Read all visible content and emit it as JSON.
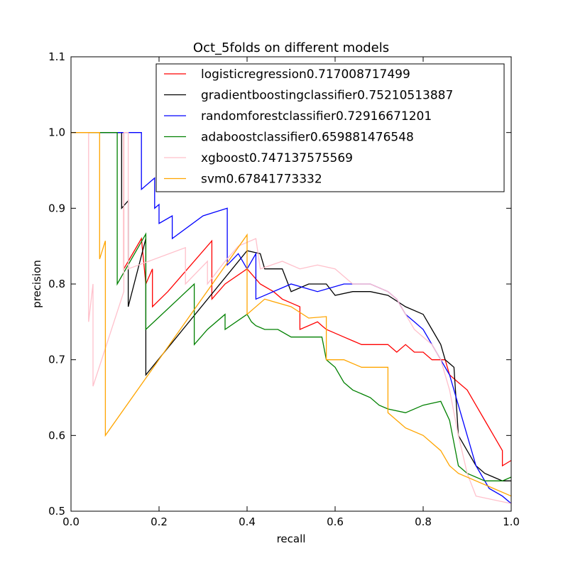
{
  "chart_data": {
    "type": "line",
    "title": "Oct_5folds on  different models",
    "xlabel": "recall",
    "ylabel": "precision",
    "xlim": [
      0.0,
      1.0
    ],
    "ylim": [
      0.5,
      1.1
    ],
    "xticks": [
      "0.0",
      "0.2",
      "0.4",
      "0.6",
      "0.8",
      "1.0"
    ],
    "yticks": [
      "0.5",
      "0.6",
      "0.7",
      "0.8",
      "0.9",
      "1.0",
      "1.1"
    ],
    "legend_position": "top-right",
    "series": [
      {
        "name": "logisticregression0.717008717499",
        "color": "#ff0000",
        "points": [
          [
            0,
            1.0
          ],
          [
            0.12,
            1.0
          ],
          [
            0.12,
            0.82
          ],
          [
            0.16,
            0.86
          ],
          [
            0.17,
            0.8
          ],
          [
            0.185,
            0.82
          ],
          [
            0.185,
            0.77
          ],
          [
            0.22,
            0.79
          ],
          [
            0.32,
            0.857
          ],
          [
            0.32,
            0.78
          ],
          [
            0.35,
            0.8
          ],
          [
            0.4,
            0.82
          ],
          [
            0.43,
            0.8
          ],
          [
            0.46,
            0.79
          ],
          [
            0.48,
            0.78
          ],
          [
            0.5,
            0.775
          ],
          [
            0.52,
            0.77
          ],
          [
            0.52,
            0.74
          ],
          [
            0.56,
            0.75
          ],
          [
            0.57,
            0.745
          ],
          [
            0.58,
            0.74
          ],
          [
            0.6,
            0.735
          ],
          [
            0.62,
            0.73
          ],
          [
            0.64,
            0.725
          ],
          [
            0.66,
            0.72
          ],
          [
            0.7,
            0.72
          ],
          [
            0.72,
            0.72
          ],
          [
            0.74,
            0.71
          ],
          [
            0.76,
            0.72
          ],
          [
            0.78,
            0.71
          ],
          [
            0.8,
            0.71
          ],
          [
            0.82,
            0.7
          ],
          [
            0.85,
            0.7
          ],
          [
            0.86,
            0.68
          ],
          [
            0.88,
            0.67
          ],
          [
            0.9,
            0.66
          ],
          [
            0.92,
            0.64
          ],
          [
            0.94,
            0.62
          ],
          [
            0.96,
            0.6
          ],
          [
            0.98,
            0.58
          ],
          [
            0.98,
            0.56
          ],
          [
            1.0,
            0.567
          ]
        ]
      },
      {
        "name": "gradientboostingclassifier0.75210513887",
        "color": "#000000",
        "points": [
          [
            0,
            1.0
          ],
          [
            0.115,
            1.0
          ],
          [
            0.115,
            0.9
          ],
          [
            0.13,
            0.91
          ],
          [
            0.13,
            0.77
          ],
          [
            0.17,
            0.86
          ],
          [
            0.17,
            0.68
          ],
          [
            0.4,
            0.844
          ],
          [
            0.43,
            0.84
          ],
          [
            0.44,
            0.82
          ],
          [
            0.48,
            0.82
          ],
          [
            0.5,
            0.79
          ],
          [
            0.54,
            0.8
          ],
          [
            0.58,
            0.8
          ],
          [
            0.6,
            0.785
          ],
          [
            0.64,
            0.79
          ],
          [
            0.68,
            0.79
          ],
          [
            0.72,
            0.785
          ],
          [
            0.76,
            0.77
          ],
          [
            0.8,
            0.76
          ],
          [
            0.82,
            0.74
          ],
          [
            0.84,
            0.72
          ],
          [
            0.85,
            0.7
          ],
          [
            0.87,
            0.69
          ],
          [
            0.88,
            0.6
          ],
          [
            0.9,
            0.58
          ],
          [
            0.92,
            0.56
          ],
          [
            0.94,
            0.55
          ],
          [
            0.96,
            0.545
          ],
          [
            0.98,
            0.54
          ],
          [
            1.0,
            0.54
          ]
        ]
      },
      {
        "name": "randomforestclassifier0.72916671201",
        "color": "#0000ff",
        "points": [
          [
            0,
            1.0
          ],
          [
            0.16,
            1.0
          ],
          [
            0.16,
            0.925
          ],
          [
            0.19,
            0.94
          ],
          [
            0.19,
            0.9
          ],
          [
            0.2,
            0.905
          ],
          [
            0.2,
            0.88
          ],
          [
            0.23,
            0.89
          ],
          [
            0.23,
            0.86
          ],
          [
            0.3,
            0.89
          ],
          [
            0.355,
            0.9
          ],
          [
            0.355,
            0.825
          ],
          [
            0.38,
            0.84
          ],
          [
            0.4,
            0.82
          ],
          [
            0.42,
            0.84
          ],
          [
            0.42,
            0.78
          ],
          [
            0.5,
            0.8
          ],
          [
            0.56,
            0.79
          ],
          [
            0.62,
            0.8
          ],
          [
            0.68,
            0.8
          ],
          [
            0.72,
            0.79
          ],
          [
            0.74,
            0.78
          ],
          [
            0.76,
            0.76
          ],
          [
            0.78,
            0.75
          ],
          [
            0.8,
            0.74
          ],
          [
            0.82,
            0.72
          ],
          [
            0.84,
            0.7
          ],
          [
            0.86,
            0.68
          ],
          [
            0.88,
            0.64
          ],
          [
            0.9,
            0.6
          ],
          [
            0.92,
            0.56
          ],
          [
            0.95,
            0.53
          ],
          [
            0.98,
            0.52
          ],
          [
            1.0,
            0.51
          ]
        ]
      },
      {
        "name": "adaboostclassifier0.659881476548",
        "color": "#008000",
        "points": [
          [
            0,
            1.0
          ],
          [
            0.105,
            1.0
          ],
          [
            0.105,
            0.8
          ],
          [
            0.17,
            0.866
          ],
          [
            0.17,
            0.74
          ],
          [
            0.28,
            0.8
          ],
          [
            0.28,
            0.72
          ],
          [
            0.31,
            0.74
          ],
          [
            0.35,
            0.76
          ],
          [
            0.35,
            0.74
          ],
          [
            0.4,
            0.76
          ],
          [
            0.41,
            0.75
          ],
          [
            0.42,
            0.745
          ],
          [
            0.44,
            0.74
          ],
          [
            0.47,
            0.74
          ],
          [
            0.5,
            0.73
          ],
          [
            0.54,
            0.73
          ],
          [
            0.57,
            0.73
          ],
          [
            0.58,
            0.7
          ],
          [
            0.6,
            0.69
          ],
          [
            0.62,
            0.67
          ],
          [
            0.64,
            0.66
          ],
          [
            0.68,
            0.65
          ],
          [
            0.7,
            0.64
          ],
          [
            0.72,
            0.635
          ],
          [
            0.76,
            0.63
          ],
          [
            0.8,
            0.64
          ],
          [
            0.84,
            0.645
          ],
          [
            0.86,
            0.62
          ],
          [
            0.88,
            0.56
          ],
          [
            0.9,
            0.55
          ],
          [
            0.94,
            0.54
          ],
          [
            0.98,
            0.54
          ],
          [
            1.0,
            0.545
          ]
        ]
      },
      {
        "name": "xgboost0.747137575569",
        "color": "#ffc0cb",
        "points": [
          [
            0,
            1.0
          ],
          [
            0.04,
            1.0
          ],
          [
            0.04,
            0.75
          ],
          [
            0.05,
            0.8
          ],
          [
            0.05,
            0.665
          ],
          [
            0.12,
            0.79
          ],
          [
            0.12,
            1.0
          ],
          [
            0.13,
            1.0
          ],
          [
            0.13,
            0.82
          ],
          [
            0.26,
            0.848
          ],
          [
            0.26,
            0.8
          ],
          [
            0.31,
            0.83
          ],
          [
            0.31,
            0.8
          ],
          [
            0.35,
            0.83
          ],
          [
            0.38,
            0.85
          ],
          [
            0.42,
            0.86
          ],
          [
            0.43,
            0.82
          ],
          [
            0.48,
            0.83
          ],
          [
            0.52,
            0.82
          ],
          [
            0.56,
            0.825
          ],
          [
            0.6,
            0.82
          ],
          [
            0.64,
            0.8
          ],
          [
            0.68,
            0.8
          ],
          [
            0.72,
            0.79
          ],
          [
            0.74,
            0.78
          ],
          [
            0.76,
            0.76
          ],
          [
            0.78,
            0.74
          ],
          [
            0.8,
            0.73
          ],
          [
            0.82,
            0.72
          ],
          [
            0.84,
            0.7
          ],
          [
            0.86,
            0.66
          ],
          [
            0.88,
            0.6
          ],
          [
            0.9,
            0.55
          ],
          [
            0.92,
            0.52
          ],
          [
            0.96,
            0.515
          ],
          [
            1.0,
            0.51
          ]
        ]
      },
      {
        "name": "svm0.67841773332",
        "color": "#ffa500",
        "points": [
          [
            0,
            1.0
          ],
          [
            0.065,
            1.0
          ],
          [
            0.065,
            0.833
          ],
          [
            0.078,
            0.857
          ],
          [
            0.078,
            0.6
          ],
          [
            0.4,
            0.865
          ],
          [
            0.4,
            0.76
          ],
          [
            0.44,
            0.78
          ],
          [
            0.5,
            0.77
          ],
          [
            0.54,
            0.755
          ],
          [
            0.58,
            0.757
          ],
          [
            0.58,
            0.7
          ],
          [
            0.62,
            0.7
          ],
          [
            0.66,
            0.69
          ],
          [
            0.7,
            0.69
          ],
          [
            0.72,
            0.69
          ],
          [
            0.72,
            0.63
          ],
          [
            0.76,
            0.61
          ],
          [
            0.8,
            0.6
          ],
          [
            0.84,
            0.58
          ],
          [
            0.86,
            0.56
          ],
          [
            0.88,
            0.55
          ],
          [
            0.92,
            0.54
          ],
          [
            0.96,
            0.53
          ],
          [
            1.0,
            0.52
          ]
        ]
      }
    ]
  }
}
